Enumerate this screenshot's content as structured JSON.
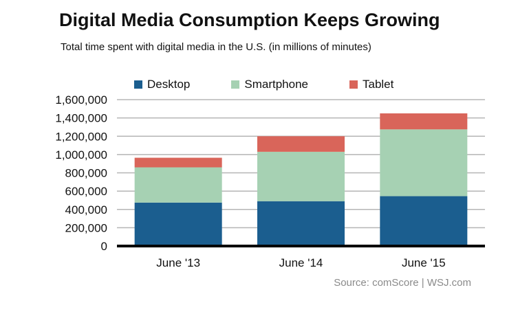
{
  "title": "Digital Media Consumption Keeps Growing",
  "subtitle": "Total time spent with digital media in the U.S. (in millions of minutes)",
  "source": "Source: comScore  |  WSJ.com",
  "colors": {
    "desktop": "#1b5e8f",
    "smartphone": "#a6d1b3",
    "tablet": "#d9655a",
    "grid": "#b5b5b5",
    "axis": "#000000"
  },
  "chart_data": {
    "type": "bar",
    "stacked": true,
    "categories": [
      "June '13",
      "June '14",
      "June '15"
    ],
    "series": [
      {
        "name": "Desktop",
        "values": [
          475000,
          490000,
          545000
        ]
      },
      {
        "name": "Smartphone",
        "values": [
          385000,
          540000,
          730000
        ]
      },
      {
        "name": "Tablet",
        "values": [
          105000,
          170000,
          175000
        ]
      }
    ],
    "ylim": [
      0,
      1600000
    ],
    "yticks": [
      0,
      200000,
      400000,
      600000,
      800000,
      1000000,
      1200000,
      1400000,
      1600000
    ],
    "ytick_labels": [
      "0",
      "200,000",
      "400,000",
      "600,000",
      "800,000",
      "1,000,000",
      "1,200,000",
      "1,400,000",
      "1,600,000"
    ],
    "grid": true,
    "legend_position": "top"
  }
}
